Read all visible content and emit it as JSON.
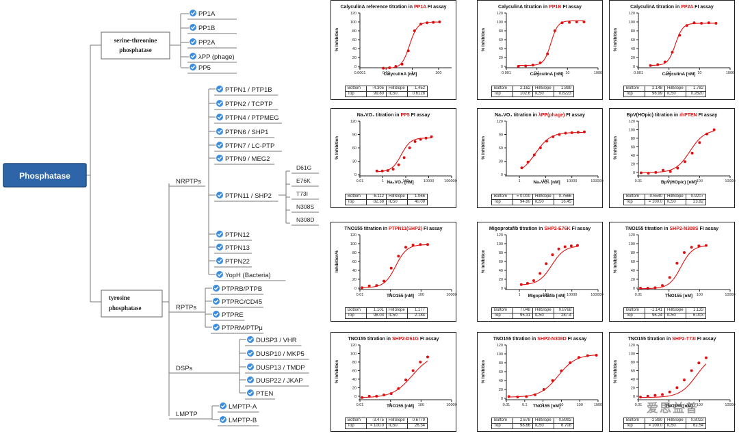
{
  "tree": {
    "root": "Phosphatase",
    "serine": {
      "label": "serine-threonine phosphatase",
      "items": [
        "PP1A",
        "PP1B",
        "PP2A",
        "λPP (phage)",
        "PP5"
      ]
    },
    "tyrosine": {
      "label": "tyrosine phosphatase",
      "groups": [
        {
          "label": "NRPTPs",
          "items": [
            "PTPN1 / PTP1B",
            "PTPN2 / TCPTP",
            "PTPN4 / PTPMEG",
            "PTPN6 / SHP1",
            "PTPN7 / LC-PTP",
            "PTPN9 / MEG2",
            "PTPN11 / SHP2",
            "PTPN12",
            "PTPN13",
            "PTPN22",
            "YopH (Bacteria)"
          ]
        },
        {
          "label": "RPTPs",
          "items": [
            "PTPRB/PTPB",
            "PTPRC/CD45",
            "PTPRE",
            "PTPRM/PTPμ"
          ]
        },
        {
          "label": "DSPs",
          "items": [
            "DUSP3 / VHR",
            "DUSP10 / MKP5",
            "DUSP13 / TMDP",
            "DUSP22 / JKAP",
            "PTEN"
          ]
        },
        {
          "label": "LMPTP",
          "items": [
            "LMPTP-A",
            "LMPTP-B"
          ]
        }
      ],
      "shp2_mutants": [
        "D61G",
        "E76K",
        "T73I",
        "N308S",
        "N308D"
      ]
    }
  },
  "chart_data": [
    {
      "type": "line",
      "title_pre": "CalyculinA reference titration in ",
      "title_red": "PP1A",
      "title_post": " FI assay",
      "xlabel": "CalyculinA [nM]",
      "ylabel": "% Inhibition",
      "xscale": "log",
      "xticks": [
        "0.0001",
        "0.01",
        "1",
        "100"
      ],
      "xlim": [
        0.0001,
        1000
      ],
      "yticks": [
        0,
        20,
        40,
        60,
        80,
        100,
        120
      ],
      "ylim": [
        0,
        120
      ],
      "x": [
        0.0061,
        0.0183,
        0.0549,
        0.165,
        0.494,
        1.48,
        4.44,
        13.3,
        40,
        120
      ],
      "y": [
        -4,
        -3,
        0,
        5,
        35,
        80,
        95,
        98,
        99,
        100
      ],
      "fit": {
        "bottom": -4.305,
        "top": 99.8,
        "ic50": 0.6128,
        "hill": 1.452
      },
      "stats": [
        [
          "Bottom",
          "-4.305",
          "HillSlope",
          "1.452"
        ],
        [
          "Top",
          "99.80",
          "IC50",
          "0.6128"
        ]
      ]
    },
    {
      "type": "line",
      "title_pre": "CalyculinA titration in ",
      "title_red": "PP1B",
      "title_post": " FI assay",
      "xlabel": "CalyculinA [nM]",
      "ylabel": "% Inhibition",
      "xscale": "log",
      "xticks": [
        "0.001",
        "0.1",
        "10",
        "1000"
      ],
      "xlim": [
        0.001,
        1000
      ],
      "yticks": [
        0,
        20,
        40,
        60,
        80,
        100,
        120
      ],
      "ylim": [
        0,
        120
      ],
      "x": [
        0.0061,
        0.0183,
        0.0549,
        0.165,
        0.494,
        1.48,
        4.44,
        13.3,
        40,
        120
      ],
      "y": [
        0,
        1,
        3,
        8,
        28,
        80,
        98,
        99,
        100,
        100
      ],
      "fit": {
        "bottom": 2.162,
        "top": 102.6,
        "ic50": 0.8223,
        "hill": 1.899
      },
      "stats": [
        [
          "Bottom",
          "2.162",
          "HillSlope",
          "1.899"
        ],
        [
          "Top",
          "102.6",
          "IC50",
          "0.8223"
        ]
      ]
    },
    {
      "type": "line",
      "title_pre": "CalyculinA titration in ",
      "title_red": "PP2A",
      "title_post": " FI assay",
      "xlabel": "CalyculinA [nM]",
      "ylabel": "% Inhibition",
      "xscale": "log",
      "xticks": [
        "0.001",
        "0.1",
        "10",
        "1000"
      ],
      "xlim": [
        0.001,
        1000
      ],
      "yticks": [
        0,
        20,
        40,
        60,
        80,
        100,
        120
      ],
      "ylim": [
        0,
        120
      ],
      "x": [
        0.0061,
        0.0183,
        0.0549,
        0.165,
        0.494,
        1.48,
        4.44,
        13.3,
        40,
        120
      ],
      "y": [
        2,
        4,
        10,
        32,
        70,
        92,
        98,
        97,
        98,
        97
      ],
      "fit": {
        "bottom": 2.148,
        "top": 96.99,
        "ic50": 0.262,
        "hill": 1.782
      },
      "stats": [
        [
          "Bottom",
          "2.148",
          "HillSlope",
          "1.782"
        ],
        [
          "Top",
          "96.99",
          "IC50",
          "0.2620"
        ]
      ]
    },
    {
      "type": "line",
      "title_pre": "Na₃VO₄ titration in ",
      "title_red": "PP5",
      "title_post": " FI assay",
      "xlabel": "Na₃VO₄ [nM]",
      "ylabel": "% Inhibition",
      "xscale": "log",
      "xticks": [
        "0.01",
        "1",
        "100",
        "10000",
        "1000000"
      ],
      "xlim": [
        0.01,
        1000000
      ],
      "yticks": [
        0,
        30,
        60,
        90,
        120
      ],
      "ylim": [
        0,
        120
      ],
      "x": [
        0.3,
        0.9,
        2.7,
        8,
        24,
        72,
        216,
        650,
        1950,
        5850,
        17500
      ],
      "y": [
        8,
        8,
        9,
        12,
        22,
        38,
        60,
        74,
        79,
        82,
        85
      ],
      "fit": {
        "bottom": 6.112,
        "top": 82.38,
        "ic50": 40.09,
        "hill": 1.066
      },
      "stats": [
        [
          "Bottom",
          "6.112",
          "HillSlope",
          "1.066"
        ],
        [
          "Top",
          "82.38",
          "IC50",
          "40.09"
        ]
      ]
    },
    {
      "type": "line",
      "title_pre": "Na₃VO₄ titration in ",
      "title_red": "λPP(phage)",
      "title_post": " FI assay",
      "xlabel": "Na₃VO₄ [nM]",
      "ylabel": "% Inhibition",
      "xscale": "log",
      "xticks": [
        "1",
        "100",
        "10000",
        "1000000"
      ],
      "xlim": [
        0.1,
        1000000
      ],
      "yticks": [
        0,
        30,
        60,
        90,
        120
      ],
      "ylim": [
        0,
        120
      ],
      "x": [
        1.5,
        4.5,
        13.5,
        40,
        120,
        370,
        1100,
        3300,
        10000,
        30000,
        90000
      ],
      "y": [
        15,
        28,
        44,
        60,
        75,
        85,
        90,
        93,
        94,
        95,
        96
      ],
      "fit": {
        "bottom": 0,
        "top": 94.8,
        "ic50": 16.45,
        "hill": 0.7566
      },
      "stats": [
        [
          "Bottom",
          "= 0.000",
          "HillSlope",
          "0.7566"
        ],
        [
          "Top",
          "94.80",
          "IC50",
          "16.45"
        ]
      ]
    },
    {
      "type": "line",
      "title_pre": "BpV(HOpic) titration in ",
      "title_red": "rhPTEN",
      "title_post": " FI assay",
      "xlabel": "BpV(HOpic) [nM]",
      "ylabel": "% Inhibition",
      "xscale": "log",
      "xticks": [
        "0.01",
        "1",
        "100",
        "10000"
      ],
      "xlim": [
        0.01,
        10000
      ],
      "yticks": [
        0,
        20,
        40,
        60,
        80,
        100,
        120
      ],
      "ylim": [
        -5,
        120
      ],
      "x": [
        0.015,
        0.045,
        0.137,
        0.41,
        1.23,
        3.7,
        11,
        33,
        100,
        300,
        900
      ],
      "y": [
        -1,
        -2,
        0,
        5,
        2,
        10,
        25,
        45,
        70,
        90,
        100
      ],
      "fit": {
        "bottom": -0.554,
        "top": 100,
        "ic50": 23.82,
        "hill": 0.9207
      },
      "stats": [
        [
          "Bottom",
          "-0.5540",
          "HillSlope",
          "0.9207"
        ],
        [
          "Top",
          "= 100.0",
          "IC50",
          "23.82"
        ]
      ]
    },
    {
      "type": "line",
      "title_pre": "TNO155 titration in ",
      "title_red": "PTPN11(SHP2)",
      "title_post": " FI assay",
      "xlabel": "TNO155 [nM]",
      "ylabel": "Inhibition%",
      "xscale": "log",
      "xticks": [
        "0.01",
        "1",
        "100",
        "10000"
      ],
      "xlim": [
        0.01,
        10000
      ],
      "yticks": [
        0,
        20,
        40,
        60,
        80,
        100,
        120
      ],
      "ylim": [
        0,
        120
      ],
      "x": [
        0.0137,
        0.041,
        0.123,
        0.37,
        1.11,
        3.33,
        10,
        30,
        90,
        270
      ],
      "y": [
        1,
        5,
        6,
        16,
        45,
        72,
        92,
        97,
        98,
        98
      ],
      "fit": {
        "bottom": 1.101,
        "top": 98.03,
        "ic50": 2.184,
        "hill": 1.177
      },
      "stats": [
        [
          "Bottom",
          "1.101",
          "HillSlope",
          "1.177"
        ],
        [
          "Top",
          "98.03",
          "IC50",
          "2.184"
        ]
      ]
    },
    {
      "type": "line",
      "title_pre": "Migoprotafib titration in ",
      "title_red": "SHP2-E76K",
      "title_post": " FI assay",
      "xlabel": "Migoprotafib [nM]",
      "ylabel": "% Inhibition",
      "xscale": "log",
      "xticks": [
        "1",
        "100",
        "10000",
        "1000000"
      ],
      "xlim": [
        0.1,
        1000000
      ],
      "yticks": [
        0,
        20,
        40,
        60,
        80,
        100,
        120
      ],
      "ylim": [
        0,
        120
      ],
      "x": [
        1.37,
        4.1,
        12.3,
        37,
        111,
        333,
        1000,
        3000,
        9000,
        27000
      ],
      "y": [
        8,
        11,
        17,
        33,
        55,
        75,
        88,
        93,
        95,
        96
      ],
      "fit": {
        "bottom": 7.048,
        "top": 95.31,
        "ic50": 287.4,
        "hill": 0.8768
      },
      "stats": [
        [
          "Bottom",
          "7.048",
          "HillSlope",
          "0.8768"
        ],
        [
          "Top",
          "95.31",
          "IC50",
          "287.4"
        ]
      ]
    },
    {
      "type": "line",
      "title_pre": "TNO155 titration in ",
      "title_red": "SHP2-N308S",
      "title_post": " FI assay",
      "xlabel": "TNO155 [nM]",
      "ylabel": "% Inhibition",
      "xscale": "log",
      "xticks": [
        "0.01",
        "1",
        "100",
        "10000"
      ],
      "xlim": [
        0.01,
        10000
      ],
      "yticks": [
        0,
        20,
        40,
        60,
        80,
        100,
        120
      ],
      "ylim": [
        0,
        120
      ],
      "x": [
        0.0137,
        0.041,
        0.123,
        0.37,
        1.11,
        3.33,
        10,
        30,
        90,
        270
      ],
      "y": [
        0,
        0,
        1,
        6,
        24,
        56,
        80,
        92,
        95,
        96
      ],
      "fit": {
        "bottom": -1.141,
        "top": 96.24,
        "ic50": 6.003,
        "hill": 1.133
      },
      "stats": [
        [
          "Bottom",
          "-1.141",
          "HillSlope",
          "1.133"
        ],
        [
          "Top",
          "96.24",
          "IC50",
          "6.003"
        ]
      ]
    },
    {
      "type": "line",
      "title_pre": "TNO155 titration in ",
      "title_red": "SHP2-D61G",
      "title_post": " FI assay",
      "xlabel": "TNO155 [nM]",
      "ylabel": "% Inhibition",
      "xscale": "log",
      "xticks": [
        "0.01",
        "1",
        "100",
        "10000"
      ],
      "xlim": [
        0.01,
        10000
      ],
      "yticks": [
        0,
        20,
        40,
        60,
        80,
        100,
        120
      ],
      "ylim": [
        -5,
        120
      ],
      "x": [
        0.0137,
        0.041,
        0.123,
        0.37,
        1.11,
        3.33,
        10,
        30,
        90,
        270
      ],
      "y": [
        -3,
        0,
        0,
        3,
        6,
        18,
        38,
        60,
        80,
        92
      ],
      "fit": {
        "bottom": -3.475,
        "top": 100,
        "ic50": 26.34,
        "hill": 0.6779
      },
      "stats": [
        [
          "Bottom",
          "-3.475",
          "HillSlope",
          "0.6779"
        ],
        [
          "Top",
          "= 100.0",
          "IC50",
          "26.34"
        ]
      ]
    },
    {
      "type": "line",
      "title_pre": "TNO155 titration in ",
      "title_red": "SHP2-N308D",
      "title_post": " FI assay",
      "xlabel": "TNO155 [nM]",
      "ylabel": "% Inhibition",
      "xscale": "log",
      "xticks": [
        "0.01",
        "0.1",
        "1",
        "10",
        "100",
        "1000"
      ],
      "xlim": [
        0.01,
        1000
      ],
      "yticks": [
        0,
        20,
        40,
        60,
        80,
        100,
        120
      ],
      "ylim": [
        0,
        120
      ],
      "x": [
        0.0137,
        0.041,
        0.123,
        0.37,
        1.11,
        3.33,
        10,
        30,
        90,
        270,
        810
      ],
      "y": [
        4,
        3,
        4,
        8,
        20,
        40,
        62,
        80,
        92,
        96,
        97
      ],
      "fit": {
        "bottom": 2.678,
        "top": 98.66,
        "ic50": 6.708,
        "hill": 0.8992
      },
      "stats": [
        [
          "Bottom",
          "2.678",
          "HillSlope",
          "0.8992"
        ],
        [
          "Top",
          "98.66",
          "IC50",
          "6.708"
        ]
      ]
    },
    {
      "type": "line",
      "title_pre": "TNO155 titration in ",
      "title_red": "SHP2-T73I",
      "title_post": " FI assay",
      "xlabel": "TNO155 [nM]",
      "ylabel": "% Inhibition",
      "xscale": "log",
      "xticks": [
        "0.01",
        "1",
        "100",
        "10000"
      ],
      "xlim": [
        0.01,
        10000
      ],
      "yticks": [
        0,
        20,
        40,
        60,
        80,
        100,
        120
      ],
      "ylim": [
        -5,
        120
      ],
      "x": [
        0.0137,
        0.041,
        0.123,
        0.37,
        1.11,
        3.33,
        10,
        30,
        90,
        270
      ],
      "y": [
        -2,
        0,
        2,
        4,
        10,
        20,
        38,
        60,
        78,
        90
      ],
      "fit": {
        "bottom": -2.89,
        "top": 100,
        "ic50": 62.54,
        "hill": 0.8023
      },
      "stats": [
        [
          "Bottom",
          "-2.890",
          "HillSlope",
          "0.8023"
        ],
        [
          "Top",
          "= 100.0",
          "IC50",
          "62.54"
        ]
      ]
    }
  ],
  "watermark": "爱思益普"
}
